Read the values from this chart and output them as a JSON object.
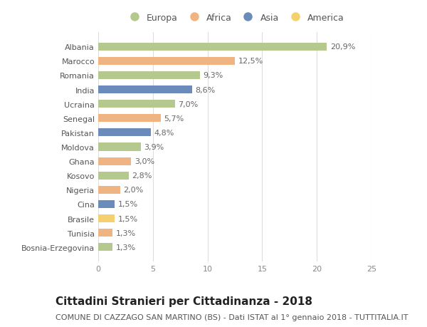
{
  "countries": [
    "Albania",
    "Marocco",
    "Romania",
    "India",
    "Ucraina",
    "Senegal",
    "Pakistan",
    "Moldova",
    "Ghana",
    "Kosovo",
    "Nigeria",
    "Cina",
    "Brasile",
    "Tunisia",
    "Bosnia-Erzegovina"
  ],
  "values": [
    20.9,
    12.5,
    9.3,
    8.6,
    7.0,
    5.7,
    4.8,
    3.9,
    3.0,
    2.8,
    2.0,
    1.5,
    1.5,
    1.3,
    1.3
  ],
  "labels": [
    "20,9%",
    "12,5%",
    "9,3%",
    "8,6%",
    "7,0%",
    "5,7%",
    "4,8%",
    "3,9%",
    "3,0%",
    "2,8%",
    "2,0%",
    "1,5%",
    "1,5%",
    "1,3%",
    "1,3%"
  ],
  "continents": [
    "Europa",
    "Africa",
    "Europa",
    "Asia",
    "Europa",
    "Africa",
    "Asia",
    "Europa",
    "Africa",
    "Europa",
    "Africa",
    "Asia",
    "America",
    "Africa",
    "Europa"
  ],
  "colors": {
    "Europa": "#b5c98e",
    "Africa": "#f0b482",
    "Asia": "#6b8cba",
    "America": "#f5d06e"
  },
  "legend_order": [
    "Europa",
    "Africa",
    "Asia",
    "America"
  ],
  "xlim": [
    0,
    25
  ],
  "xticks": [
    0,
    5,
    10,
    15,
    20,
    25
  ],
  "title": "Cittadini Stranieri per Cittadinanza - 2018",
  "subtitle": "COMUNE DI CAZZAGO SAN MARTINO (BS) - Dati ISTAT al 1° gennaio 2018 - TUTTITALIA.IT",
  "background_color": "#ffffff",
  "grid_color": "#dddddd",
  "bar_height": 0.55,
  "title_fontsize": 11,
  "subtitle_fontsize": 8,
  "label_fontsize": 8,
  "tick_fontsize": 8,
  "legend_fontsize": 9
}
